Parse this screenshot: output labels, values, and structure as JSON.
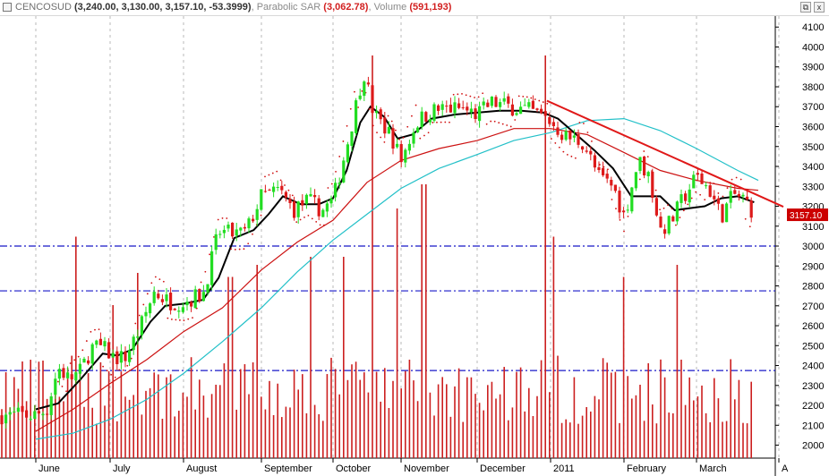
{
  "header": {
    "symbol": "CENCOSUD",
    "ohlc": "(3,240.00, 3,130.00, 3,157.10, -53.3999)",
    "sar_label": "Parabolic SAR",
    "sar_value": "(3,062.78)",
    "volume_label": "Volume",
    "volume_value": "(591,193)"
  },
  "window_buttons": {
    "restore": "⧉",
    "close": "x"
  },
  "colors": {
    "up_candle": "#22dd22",
    "down_candle": "#dd1a1a",
    "sar_dots": "#d01010",
    "volume_bars": "#cc1f1f",
    "ma_fast": "#000000",
    "ma_mid": "#cc1111",
    "ma_slow": "#22c0c8",
    "trendline": "#e01818",
    "hlines": "#1818c8",
    "last_price_bg": "#cc0000"
  },
  "chart_data": {
    "type": "candlestick",
    "symbol": "CENCOSUD",
    "y_ticks": [
      2000,
      2100,
      2200,
      2300,
      2400,
      2500,
      2600,
      2700,
      2800,
      2900,
      3000,
      3100,
      3200,
      3300,
      3400,
      3500,
      3600,
      3700,
      3800,
      3900,
      4000,
      4100
    ],
    "ylim": [
      1935,
      4155
    ],
    "x_months": [
      "June",
      "July",
      "August",
      "September",
      "October",
      "November",
      "December",
      "2011",
      "February",
      "March",
      "A"
    ],
    "last_price": "3157.10",
    "last_price_value": 3157.1,
    "horizontal_lines": [
      3000,
      2775,
      2375
    ],
    "trendline": {
      "from": {
        "month_index": 6.95,
        "price": 3730
      },
      "to": {
        "month_index": 9.75,
        "price": 3175
      }
    },
    "price_path": [
      {
        "m": 0.0,
        "p": 2150
      },
      {
        "m": 0.15,
        "p": 2180
      },
      {
        "m": 0.3,
        "p": 2390
      },
      {
        "m": 0.45,
        "p": 2330
      },
      {
        "m": 0.6,
        "p": 2370
      },
      {
        "m": 0.75,
        "p": 2490
      },
      {
        "m": 0.9,
        "p": 2490
      },
      {
        "m": 1.05,
        "p": 2440
      },
      {
        "m": 1.2,
        "p": 2440
      },
      {
        "m": 1.4,
        "p": 2580
      },
      {
        "m": 1.6,
        "p": 2770
      },
      {
        "m": 1.8,
        "p": 2720
      },
      {
        "m": 2.0,
        "p": 2720
      },
      {
        "m": 2.25,
        "p": 2760
      },
      {
        "m": 2.45,
        "p": 3070
      },
      {
        "m": 2.65,
        "p": 3060
      },
      {
        "m": 2.8,
        "p": 3070
      },
      {
        "m": 3.0,
        "p": 3250
      },
      {
        "m": 3.25,
        "p": 3280
      },
      {
        "m": 3.45,
        "p": 3180
      },
      {
        "m": 3.65,
        "p": 3230
      },
      {
        "m": 3.85,
        "p": 3180
      },
      {
        "m": 4.0,
        "p": 3230
      },
      {
        "m": 4.2,
        "p": 3500
      },
      {
        "m": 4.45,
        "p": 3880
      },
      {
        "m": 4.6,
        "p": 3660
      },
      {
        "m": 4.85,
        "p": 3560
      },
      {
        "m": 5.0,
        "p": 3430
      },
      {
        "m": 5.2,
        "p": 3620
      },
      {
        "m": 5.4,
        "p": 3680
      },
      {
        "m": 5.6,
        "p": 3690
      },
      {
        "m": 5.8,
        "p": 3690
      },
      {
        "m": 6.0,
        "p": 3660
      },
      {
        "m": 6.2,
        "p": 3720
      },
      {
        "m": 6.45,
        "p": 3700
      },
      {
        "m": 6.7,
        "p": 3680
      },
      {
        "m": 6.95,
        "p": 3640
      },
      {
        "m": 7.2,
        "p": 3550
      },
      {
        "m": 7.45,
        "p": 3520
      },
      {
        "m": 7.65,
        "p": 3350
      },
      {
        "m": 7.85,
        "p": 3300
      },
      {
        "m": 8.0,
        "p": 3150
      },
      {
        "m": 8.2,
        "p": 3430
      },
      {
        "m": 8.35,
        "p": 3350
      },
      {
        "m": 8.5,
        "p": 3080
      },
      {
        "m": 8.65,
        "p": 3120
      },
      {
        "m": 8.8,
        "p": 3230
      },
      {
        "m": 9.0,
        "p": 3350
      },
      {
        "m": 9.15,
        "p": 3290
      },
      {
        "m": 9.3,
        "p": 3150
      },
      {
        "m": 9.45,
        "p": 3260
      },
      {
        "m": 9.6,
        "p": 3230
      },
      {
        "m": 9.7,
        "p": 3160
      }
    ],
    "ma_fast": [
      {
        "m": 0.0,
        "p": 2180
      },
      {
        "m": 0.3,
        "p": 2210
      },
      {
        "m": 0.6,
        "p": 2330
      },
      {
        "m": 0.9,
        "p": 2460
      },
      {
        "m": 1.1,
        "p": 2450
      },
      {
        "m": 1.3,
        "p": 2480
      },
      {
        "m": 1.55,
        "p": 2620
      },
      {
        "m": 1.75,
        "p": 2700
      },
      {
        "m": 2.0,
        "p": 2710
      },
      {
        "m": 2.25,
        "p": 2730
      },
      {
        "m": 2.45,
        "p": 2840
      },
      {
        "m": 2.65,
        "p": 3040
      },
      {
        "m": 2.9,
        "p": 3080
      },
      {
        "m": 3.1,
        "p": 3160
      },
      {
        "m": 3.3,
        "p": 3250
      },
      {
        "m": 3.55,
        "p": 3210
      },
      {
        "m": 3.8,
        "p": 3210
      },
      {
        "m": 4.0,
        "p": 3240
      },
      {
        "m": 4.2,
        "p": 3380
      },
      {
        "m": 4.4,
        "p": 3620
      },
      {
        "m": 4.55,
        "p": 3700
      },
      {
        "m": 4.75,
        "p": 3650
      },
      {
        "m": 4.95,
        "p": 3540
      },
      {
        "m": 5.15,
        "p": 3560
      },
      {
        "m": 5.4,
        "p": 3640
      },
      {
        "m": 5.7,
        "p": 3660
      },
      {
        "m": 6.0,
        "p": 3670
      },
      {
        "m": 6.3,
        "p": 3680
      },
      {
        "m": 6.6,
        "p": 3680
      },
      {
        "m": 6.9,
        "p": 3670
      },
      {
        "m": 7.1,
        "p": 3640
      },
      {
        "m": 7.35,
        "p": 3560
      },
      {
        "m": 7.6,
        "p": 3480
      },
      {
        "m": 7.85,
        "p": 3390
      },
      {
        "m": 8.1,
        "p": 3250
      },
      {
        "m": 8.3,
        "p": 3250
      },
      {
        "m": 8.5,
        "p": 3250
      },
      {
        "m": 8.7,
        "p": 3180
      },
      {
        "m": 8.9,
        "p": 3190
      },
      {
        "m": 9.1,
        "p": 3200
      },
      {
        "m": 9.3,
        "p": 3240
      },
      {
        "m": 9.5,
        "p": 3250
      },
      {
        "m": 9.7,
        "p": 3220
      }
    ],
    "ma_mid": [
      {
        "m": 0.0,
        "p": 2070
      },
      {
        "m": 0.5,
        "p": 2180
      },
      {
        "m": 1.0,
        "p": 2310
      },
      {
        "m": 1.5,
        "p": 2430
      },
      {
        "m": 2.0,
        "p": 2570
      },
      {
        "m": 2.5,
        "p": 2690
      },
      {
        "m": 3.0,
        "p": 2880
      },
      {
        "m": 3.5,
        "p": 3020
      },
      {
        "m": 4.0,
        "p": 3130
      },
      {
        "m": 4.5,
        "p": 3320
      },
      {
        "m": 5.0,
        "p": 3430
      },
      {
        "m": 5.5,
        "p": 3490
      },
      {
        "m": 6.0,
        "p": 3530
      },
      {
        "m": 6.5,
        "p": 3590
      },
      {
        "m": 7.0,
        "p": 3590
      },
      {
        "m": 7.5,
        "p": 3560
      },
      {
        "m": 8.0,
        "p": 3470
      },
      {
        "m": 8.5,
        "p": 3380
      },
      {
        "m": 9.0,
        "p": 3330
      },
      {
        "m": 9.5,
        "p": 3290
      },
      {
        "m": 9.75,
        "p": 3280
      }
    ],
    "ma_slow": [
      {
        "m": 0.0,
        "p": 2030
      },
      {
        "m": 0.5,
        "p": 2060
      },
      {
        "m": 1.0,
        "p": 2130
      },
      {
        "m": 1.5,
        "p": 2230
      },
      {
        "m": 2.0,
        "p": 2360
      },
      {
        "m": 2.5,
        "p": 2520
      },
      {
        "m": 3.0,
        "p": 2690
      },
      {
        "m": 3.5,
        "p": 2870
      },
      {
        "m": 4.0,
        "p": 3030
      },
      {
        "m": 4.5,
        "p": 3160
      },
      {
        "m": 5.0,
        "p": 3290
      },
      {
        "m": 5.5,
        "p": 3390
      },
      {
        "m": 6.0,
        "p": 3460
      },
      {
        "m": 6.5,
        "p": 3530
      },
      {
        "m": 7.0,
        "p": 3570
      },
      {
        "m": 7.5,
        "p": 3630
      },
      {
        "m": 8.0,
        "p": 3640
      },
      {
        "m": 8.5,
        "p": 3580
      },
      {
        "m": 9.0,
        "p": 3490
      },
      {
        "m": 9.5,
        "p": 3380
      },
      {
        "m": 9.75,
        "p": 3330
      }
    ],
    "volume": {
      "ylim": [
        0,
        1000
      ],
      "baseline_level": 0.17,
      "spikes": [
        {
          "m": 0.55,
          "v": 0.55
        },
        {
          "m": 1.05,
          "v": 0.38
        },
        {
          "m": 1.4,
          "v": 0.46
        },
        {
          "m": 2.6,
          "v": 0.45
        },
        {
          "m": 2.95,
          "v": 0.48
        },
        {
          "m": 3.7,
          "v": 0.5
        },
        {
          "m": 4.15,
          "v": 0.5
        },
        {
          "m": 4.55,
          "v": 1.0
        },
        {
          "m": 4.95,
          "v": 0.62
        },
        {
          "m": 5.3,
          "v": 0.68
        },
        {
          "m": 6.95,
          "v": 1.0
        },
        {
          "m": 7.05,
          "v": 0.55
        },
        {
          "m": 8.0,
          "v": 0.45
        },
        {
          "m": 8.75,
          "v": 0.48
        }
      ]
    }
  }
}
